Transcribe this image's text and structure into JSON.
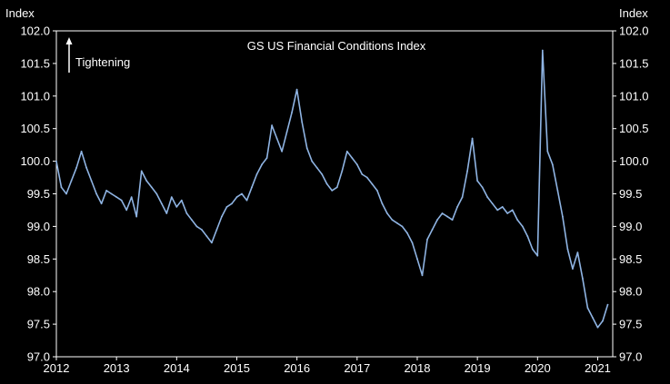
{
  "chart_data": {
    "type": "line",
    "title": "GS US Financial Conditions Index",
    "annotation": "Tightening",
    "y_axis_label_left": "Index",
    "y_axis_label_right": "Index",
    "ylim": [
      97.0,
      102.0
    ],
    "yticks": [
      "97.0",
      "97.5",
      "98.0",
      "98.5",
      "99.0",
      "99.5",
      "100.0",
      "100.5",
      "101.0",
      "101.5",
      "102.0"
    ],
    "xlim": [
      "2012-01",
      "2021-04"
    ],
    "xticks": [
      "2012",
      "2013",
      "2014",
      "2015",
      "2016",
      "2017",
      "2018",
      "2019",
      "2020",
      "2021"
    ],
    "grid": false,
    "line_color": "#8fb4e3",
    "series": [
      {
        "x": [
          "2012-01",
          "2012-02",
          "2012-03",
          "2012-04",
          "2012-05",
          "2012-06",
          "2012-07",
          "2012-08",
          "2012-09",
          "2012-10",
          "2012-11",
          "2012-12",
          "2013-01",
          "2013-02",
          "2013-03",
          "2013-04",
          "2013-05",
          "2013-06",
          "2013-07",
          "2013-08",
          "2013-09",
          "2013-10",
          "2013-11",
          "2013-12",
          "2014-01",
          "2014-02",
          "2014-03",
          "2014-04",
          "2014-05",
          "2014-06",
          "2014-07",
          "2014-08",
          "2014-09",
          "2014-10",
          "2014-11",
          "2014-12",
          "2015-01",
          "2015-02",
          "2015-03",
          "2015-04",
          "2015-05",
          "2015-06",
          "2015-07",
          "2015-08",
          "2015-09",
          "2015-10",
          "2015-11",
          "2015-12",
          "2016-01",
          "2016-02",
          "2016-03",
          "2016-04",
          "2016-05",
          "2016-06",
          "2016-07",
          "2016-08",
          "2016-09",
          "2016-10",
          "2016-11",
          "2016-12",
          "2017-01",
          "2017-02",
          "2017-03",
          "2017-04",
          "2017-05",
          "2017-06",
          "2017-07",
          "2017-08",
          "2017-09",
          "2017-10",
          "2017-11",
          "2017-12",
          "2018-01",
          "2018-02",
          "2018-03",
          "2018-04",
          "2018-05",
          "2018-06",
          "2018-07",
          "2018-08",
          "2018-09",
          "2018-10",
          "2018-11",
          "2018-12",
          "2019-01",
          "2019-02",
          "2019-03",
          "2019-04",
          "2019-05",
          "2019-06",
          "2019-07",
          "2019-08",
          "2019-09",
          "2019-10",
          "2019-11",
          "2019-12",
          "2020-01",
          "2020-02",
          "2020-03",
          "2020-04",
          "2020-05",
          "2020-06",
          "2020-07",
          "2020-08",
          "2020-09",
          "2020-10",
          "2020-11",
          "2020-12",
          "2021-01",
          "2021-02",
          "2021-03"
        ],
        "y": [
          100.0,
          99.6,
          99.5,
          99.7,
          99.9,
          100.15,
          99.9,
          99.7,
          99.5,
          99.35,
          99.55,
          99.5,
          99.45,
          99.4,
          99.25,
          99.45,
          99.15,
          99.85,
          99.7,
          99.6,
          99.5,
          99.35,
          99.2,
          99.45,
          99.3,
          99.4,
          99.2,
          99.1,
          99.0,
          98.95,
          98.85,
          98.75,
          98.95,
          99.15,
          99.3,
          99.35,
          99.45,
          99.5,
          99.4,
          99.6,
          99.8,
          99.95,
          100.05,
          100.55,
          100.35,
          100.15,
          100.45,
          100.75,
          101.1,
          100.6,
          100.2,
          100.0,
          99.9,
          99.8,
          99.65,
          99.55,
          99.6,
          99.85,
          100.15,
          100.05,
          99.95,
          99.8,
          99.75,
          99.65,
          99.55,
          99.35,
          99.2,
          99.1,
          99.05,
          99.0,
          98.9,
          98.75,
          98.5,
          98.25,
          98.8,
          98.95,
          99.1,
          99.2,
          99.15,
          99.1,
          99.3,
          99.45,
          99.85,
          100.35,
          99.7,
          99.6,
          99.45,
          99.35,
          99.25,
          99.3,
          99.2,
          99.25,
          99.1,
          99.0,
          98.85,
          98.65,
          98.55,
          101.7,
          100.15,
          99.95,
          99.55,
          99.15,
          98.65,
          98.35,
          98.6,
          98.2,
          97.75,
          97.6,
          97.45,
          97.55,
          97.8
        ]
      }
    ]
  }
}
